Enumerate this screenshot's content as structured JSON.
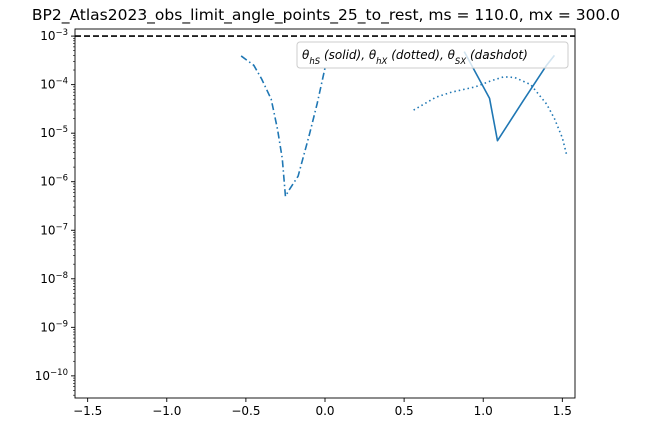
{
  "chart_data": {
    "type": "line",
    "title": "BP2_Atlas2023_obs_limit_angle_points_25_to_rest, ms = 110.0, mx = 300.0",
    "xlabel": "",
    "ylabel": "",
    "xlim": [
      -1.58,
      1.58
    ],
    "ylim": [
      3.5e-11,
      0.0014
    ],
    "yscale": "log",
    "x_ticks": [
      -1.5,
      -1.0,
      -0.5,
      0.0,
      0.5,
      1.0,
      1.5
    ],
    "x_tick_labels": [
      "−1.5",
      "−1.0",
      "−0.5",
      "0.0",
      "0.5",
      "1.0",
      "1.5"
    ],
    "y_ticks": [
      1e-10,
      1e-09,
      1e-08,
      1e-07,
      1e-06,
      1e-05,
      0.0001,
      0.001
    ],
    "y_tick_labels": [
      {
        "base": "10",
        "exp": "−10"
      },
      {
        "base": "10",
        "exp": "−9"
      },
      {
        "base": "10",
        "exp": "−8"
      },
      {
        "base": "10",
        "exp": "−7"
      },
      {
        "base": "10",
        "exp": "−6"
      },
      {
        "base": "10",
        "exp": "−5"
      },
      {
        "base": "10",
        "exp": "−4"
      },
      {
        "base": "10",
        "exp": "−3"
      }
    ],
    "grid": false,
    "legend": {
      "placement": "top-right",
      "parts": [
        {
          "sym": "θ",
          "sub": "hS",
          "txt": " (solid), "
        },
        {
          "sym": "θ",
          "sub": "hX",
          "txt": " (dotted), "
        },
        {
          "sym": "θ",
          "sub": "SX",
          "txt": " (dashdot)"
        }
      ]
    },
    "reference_line": {
      "y": 0.001,
      "style": "dashed",
      "color": "#000000"
    },
    "series_color": "#1f77b4",
    "series": [
      {
        "style": "solid",
        "x": [
          0.88,
          1.04,
          1.09,
          1.25,
          1.4,
          1.45
        ],
        "y": [
          0.00048,
          5.2e-05,
          7e-06,
          4.5e-05,
          0.00025,
          0.0004
        ]
      },
      {
        "style": "dotted",
        "x": [
          0.56,
          0.7,
          0.8,
          0.95,
          1.05,
          1.13,
          1.2,
          1.3,
          1.4,
          1.45,
          1.5,
          1.53
        ],
        "y": [
          3e-05,
          5.5e-05,
          7e-05,
          9e-05,
          0.00012,
          0.000145,
          0.00014,
          0.0001,
          4e-05,
          2e-05,
          8e-06,
          3.3e-06
        ]
      },
      {
        "style": "dashdot",
        "x": [
          -0.53,
          -0.45,
          -0.4,
          -0.34,
          -0.3,
          -0.27,
          -0.25,
          -0.23,
          -0.17,
          -0.1,
          -0.05,
          0.0
        ],
        "y": [
          0.00039,
          0.00025,
          0.00013,
          5e-05,
          1.2e-05,
          3e-06,
          5e-07,
          6.5e-07,
          1.3e-06,
          9e-06,
          4e-05,
          0.00022
        ]
      }
    ]
  }
}
